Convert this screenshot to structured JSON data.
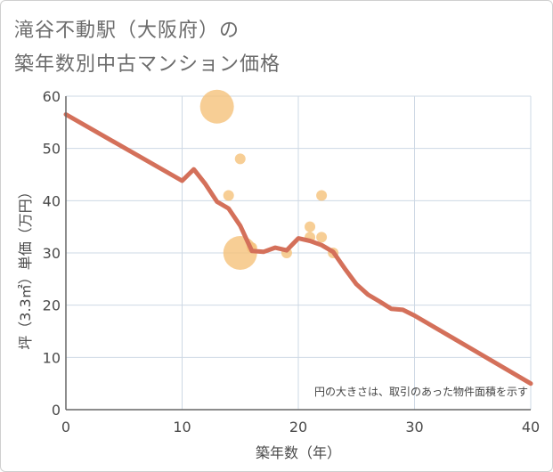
{
  "title_line1": "滝谷不動駅（大阪府）の",
  "title_line2": "築年数別中古マンション価格",
  "chart_data": {
    "type": "scatter",
    "title": "滝谷不動駅（大阪府）の築年数別中古マンション価格",
    "xlabel": "築年数（年）",
    "ylabel": "坪（3.3㎡）単価（万円）",
    "xlim": [
      0,
      40
    ],
    "ylim": [
      0,
      60
    ],
    "xticks": [
      0,
      10,
      20,
      30,
      40
    ],
    "yticks": [
      0,
      10,
      20,
      30,
      40,
      50,
      60
    ],
    "grid": true,
    "note": "円の大きさは、取引のあった物件面積を示す",
    "bubbles": [
      {
        "x": 13,
        "y": 58,
        "size": 3
      },
      {
        "x": 15,
        "y": 48,
        "size": 1
      },
      {
        "x": 14,
        "y": 41,
        "size": 1
      },
      {
        "x": 15,
        "y": 30,
        "size": 3
      },
      {
        "x": 16,
        "y": 31,
        "size": 1
      },
      {
        "x": 19,
        "y": 30,
        "size": 1
      },
      {
        "x": 21,
        "y": 35,
        "size": 1
      },
      {
        "x": 21,
        "y": 33,
        "size": 1
      },
      {
        "x": 22,
        "y": 41,
        "size": 1
      },
      {
        "x": 22,
        "y": 33,
        "size": 1
      },
      {
        "x": 23,
        "y": 30,
        "size": 1
      }
    ],
    "trend_line": {
      "x": [
        0,
        10,
        11,
        12,
        13,
        14,
        15,
        16,
        17,
        18,
        19,
        20,
        21,
        22,
        23,
        24,
        25,
        26,
        27,
        28,
        29,
        30,
        35,
        40
      ],
      "y": [
        56.5,
        43.8,
        46,
        43.2,
        39.8,
        38.5,
        35.2,
        30.4,
        30.2,
        31,
        30.5,
        32.8,
        32.3,
        31.5,
        30.2,
        27,
        24,
        22,
        20.7,
        19.3,
        19.1,
        18,
        11.5,
        5
      ]
    },
    "colors": {
      "bubble": "#f5c27a",
      "line": "#d4705a",
      "grid": "#cdd8e4",
      "axis": "#666666"
    }
  }
}
